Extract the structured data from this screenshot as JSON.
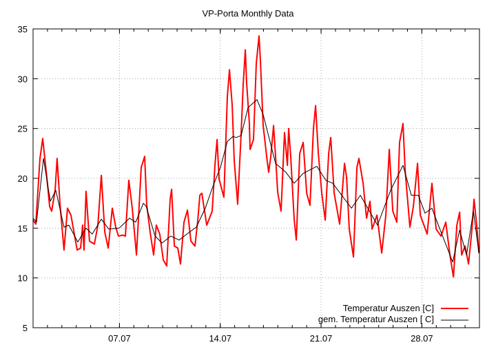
{
  "chart_data": {
    "type": "line",
    "title": "VP-Porta Monthly Data",
    "xlabel": "",
    "ylabel": "",
    "x_unit": "day of July",
    "xlim": [
      1,
      32
    ],
    "ylim": [
      5,
      35
    ],
    "grid": true,
    "legend_position": "bottom-right",
    "x_ticks": [
      {
        "value": 7,
        "label": "07.07"
      },
      {
        "value": 14,
        "label": "14.07"
      },
      {
        "value": 21,
        "label": "21.07"
      },
      {
        "value": 28,
        "label": "28.07"
      }
    ],
    "y_ticks": [
      {
        "value": 5,
        "label": "5"
      },
      {
        "value": 10,
        "label": "10"
      },
      {
        "value": 15,
        "label": "15"
      },
      {
        "value": 20,
        "label": "20"
      },
      {
        "value": 25,
        "label": "25"
      },
      {
        "value": 30,
        "label": "30"
      },
      {
        "value": 35,
        "label": "35"
      }
    ],
    "series": [
      {
        "name": "Temperatur Auszen [C]",
        "color": "#ff0000",
        "x": [
          1.0,
          1.19,
          1.48,
          1.67,
          1.96,
          2.15,
          2.29,
          2.53,
          2.67,
          2.87,
          3.15,
          3.39,
          3.63,
          4.06,
          4.3,
          4.44,
          4.54,
          4.68,
          4.92,
          5.26,
          5.5,
          5.74,
          5.98,
          6.22,
          6.5,
          6.74,
          6.93,
          7.22,
          7.41,
          7.65,
          7.89,
          8.18,
          8.51,
          8.75,
          8.89,
          9.13,
          9.37,
          9.56,
          9.8,
          10.04,
          10.28,
          10.52,
          10.62,
          10.81,
          11.05,
          11.24,
          11.48,
          11.72,
          11.96,
          12.24,
          12.44,
          12.58,
          12.72,
          13.06,
          13.44,
          13.63,
          13.78,
          13.92,
          14.25,
          14.49,
          14.64,
          14.83,
          14.97,
          15.21,
          15.45,
          15.59,
          15.74,
          15.83,
          16.02,
          16.07,
          16.31,
          16.5,
          16.69,
          16.79,
          16.98,
          17.22,
          17.36,
          17.51,
          17.7,
          17.84,
          17.99,
          18.22,
          18.46,
          18.66,
          18.75,
          18.89,
          19.13,
          19.28,
          19.52,
          19.76,
          20.0,
          20.23,
          20.47,
          20.62,
          20.81,
          21.05,
          21.29,
          21.53,
          21.67,
          21.91,
          22.29,
          22.63,
          22.77,
          22.96,
          23.25,
          23.49,
          23.63,
          23.92,
          24.16,
          24.4,
          24.54,
          24.88,
          25.21,
          25.5,
          25.74,
          25.98,
          26.26,
          26.45,
          26.69,
          26.84,
          27.17,
          27.41,
          27.7,
          27.89,
          28.37,
          28.7,
          28.99,
          29.33,
          29.66,
          29.95,
          30.19,
          30.43,
          30.62,
          30.76,
          31.0,
          31.24,
          31.48,
          31.62,
          31.81,
          31.96
        ],
        "y": [
          15.8,
          15.4,
          22.0,
          24.0,
          20.0,
          17.2,
          16.7,
          18.8,
          22.0,
          17.4,
          12.8,
          17.0,
          16.3,
          12.8,
          13.0,
          15.3,
          12.8,
          18.7,
          13.7,
          13.4,
          15.3,
          20.3,
          14.6,
          13.0,
          17.0,
          15.1,
          14.2,
          14.3,
          14.2,
          19.8,
          17.0,
          12.3,
          21.1,
          22.2,
          17.4,
          14.6,
          12.3,
          15.3,
          14.4,
          11.8,
          11.2,
          17.9,
          18.9,
          13.2,
          13.0,
          11.4,
          15.6,
          16.8,
          13.7,
          13.2,
          15.8,
          18.3,
          18.5,
          15.3,
          16.7,
          21.3,
          23.9,
          19.9,
          18.1,
          28.2,
          30.9,
          27.3,
          21.8,
          17.4,
          24.6,
          29.4,
          32.9,
          29.6,
          25.5,
          22.9,
          23.9,
          31.5,
          34.3,
          31.7,
          25.3,
          22.2,
          20.6,
          22.2,
          25.3,
          22.2,
          18.6,
          16.7,
          24.6,
          21.3,
          25.0,
          22.2,
          15.9,
          13.8,
          22.5,
          23.6,
          18.5,
          17.3,
          25.0,
          27.3,
          22.5,
          18.5,
          15.8,
          22.5,
          24.1,
          18.5,
          15.4,
          21.5,
          20.1,
          14.9,
          12.1,
          21.1,
          22.0,
          19.5,
          16.0,
          17.7,
          14.9,
          16.3,
          12.5,
          16.3,
          22.9,
          16.7,
          15.6,
          23.6,
          25.5,
          20.8,
          15.1,
          17.2,
          21.5,
          16.3,
          14.4,
          19.5,
          14.9,
          14.2,
          15.6,
          12.3,
          10.1,
          15.3,
          16.6,
          12.3,
          13.2,
          11.4,
          14.9,
          17.9,
          15.3,
          12.5
        ]
      },
      {
        "name": "gem. Temperatur Auszen [ C]",
        "color": "#000000",
        "x": [
          1.0,
          1.24,
          1.72,
          2.2,
          2.58,
          3.15,
          3.49,
          4.11,
          4.68,
          5.11,
          5.74,
          6.26,
          6.98,
          7.7,
          8.13,
          8.66,
          8.85,
          9.47,
          9.95,
          10.57,
          11.14,
          11.77,
          12.34,
          12.96,
          13.44,
          14.01,
          14.49,
          14.88,
          15.11,
          15.45,
          15.93,
          16.55,
          16.98,
          17.84,
          18.56,
          19.13,
          19.76,
          20.71,
          21.33,
          21.81,
          23.11,
          23.73,
          24.92,
          25.83,
          26.69,
          27.27,
          27.75,
          28.22,
          28.7,
          29.33,
          30.14,
          30.62,
          31.1,
          31.58,
          31.96
        ],
        "y": [
          16.0,
          15.6,
          22.0,
          17.7,
          18.8,
          15.1,
          15.3,
          13.6,
          15.0,
          14.4,
          15.9,
          14.9,
          15.0,
          16.0,
          15.6,
          17.5,
          17.2,
          14.2,
          13.5,
          14.2,
          13.8,
          14.5,
          15.1,
          17.0,
          19.0,
          21.1,
          23.7,
          24.2,
          24.1,
          24.3,
          27.1,
          27.9,
          26.4,
          21.5,
          20.6,
          19.5,
          20.5,
          21.2,
          19.8,
          19.5,
          17.0,
          18.3,
          15.3,
          18.8,
          21.3,
          18.3,
          18.3,
          16.5,
          17.0,
          14.6,
          11.6,
          14.8,
          12.3,
          16.7,
          12.5
        ]
      }
    ]
  }
}
